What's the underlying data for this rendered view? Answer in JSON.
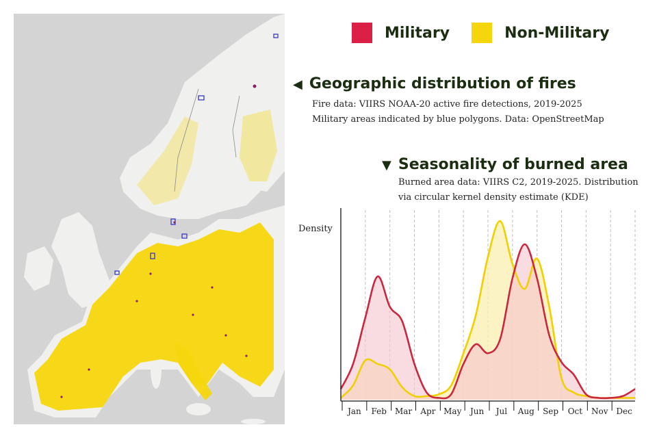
{
  "legend": {
    "military_label": "Military",
    "nonmilitary_label": "Non-Military",
    "military_color": "#dc1f44",
    "nonmilitary_color": "#f5d60c"
  },
  "geo_section": {
    "arrow_icon": "left-triangle",
    "title": "Geographic distribution of fires",
    "note_line1": "Fire data: VIIRS NOAA-20 active fire detections, 2019-2025",
    "note_line2": "Military areas indicated by blue polygons. Data: OpenStreetMap"
  },
  "season_section": {
    "arrow_icon": "down-triangle",
    "title": "Seasonality of burned area",
    "note_line1": "Burned area data: VIIRS C2, 2019-2025. Distribution",
    "note_line2": "via circular kernel density estimate (KDE)"
  },
  "map": {
    "sea_color": "#d4d4d4",
    "land_color": "#f0f0ee",
    "fire_color": "#f5d60c",
    "polygon_color": "#3636c8"
  },
  "chart_data": {
    "type": "area",
    "ylabel": "Density",
    "months": [
      "Jan",
      "Feb",
      "Mar",
      "Apr",
      "May",
      "Jun",
      "Jul",
      "Aug",
      "Sep",
      "Oct",
      "Nov",
      "Dec"
    ],
    "x": [
      0,
      0.5,
      1,
      1.5,
      2,
      2.5,
      3,
      3.5,
      4,
      4.5,
      5,
      5.5,
      6,
      6.5,
      7,
      7.5,
      8,
      8.5,
      9,
      9.5,
      10,
      10.5,
      11,
      11.5,
      12
    ],
    "series": [
      {
        "name": "Military",
        "color": "#c8273e",
        "fill": "#f5c4cf",
        "values": [
          0.06,
          0.2,
          0.46,
          0.69,
          0.52,
          0.44,
          0.2,
          0.04,
          0.01,
          0.03,
          0.2,
          0.31,
          0.26,
          0.34,
          0.68,
          0.87,
          0.68,
          0.36,
          0.21,
          0.14,
          0.03,
          0.01,
          0.01,
          0.02,
          0.06
        ]
      },
      {
        "name": "Non-Military",
        "color": "#f0d000",
        "fill": "#fbefb0",
        "values": [
          0.01,
          0.08,
          0.22,
          0.2,
          0.17,
          0.07,
          0.02,
          0.02,
          0.03,
          0.08,
          0.26,
          0.47,
          0.8,
          1.0,
          0.76,
          0.62,
          0.79,
          0.52,
          0.12,
          0.04,
          0.02,
          0.01,
          0.01,
          0.01,
          0.01
        ]
      }
    ],
    "ylim": [
      0,
      1.05
    ],
    "grid": "monthly dashed vertical lines"
  }
}
